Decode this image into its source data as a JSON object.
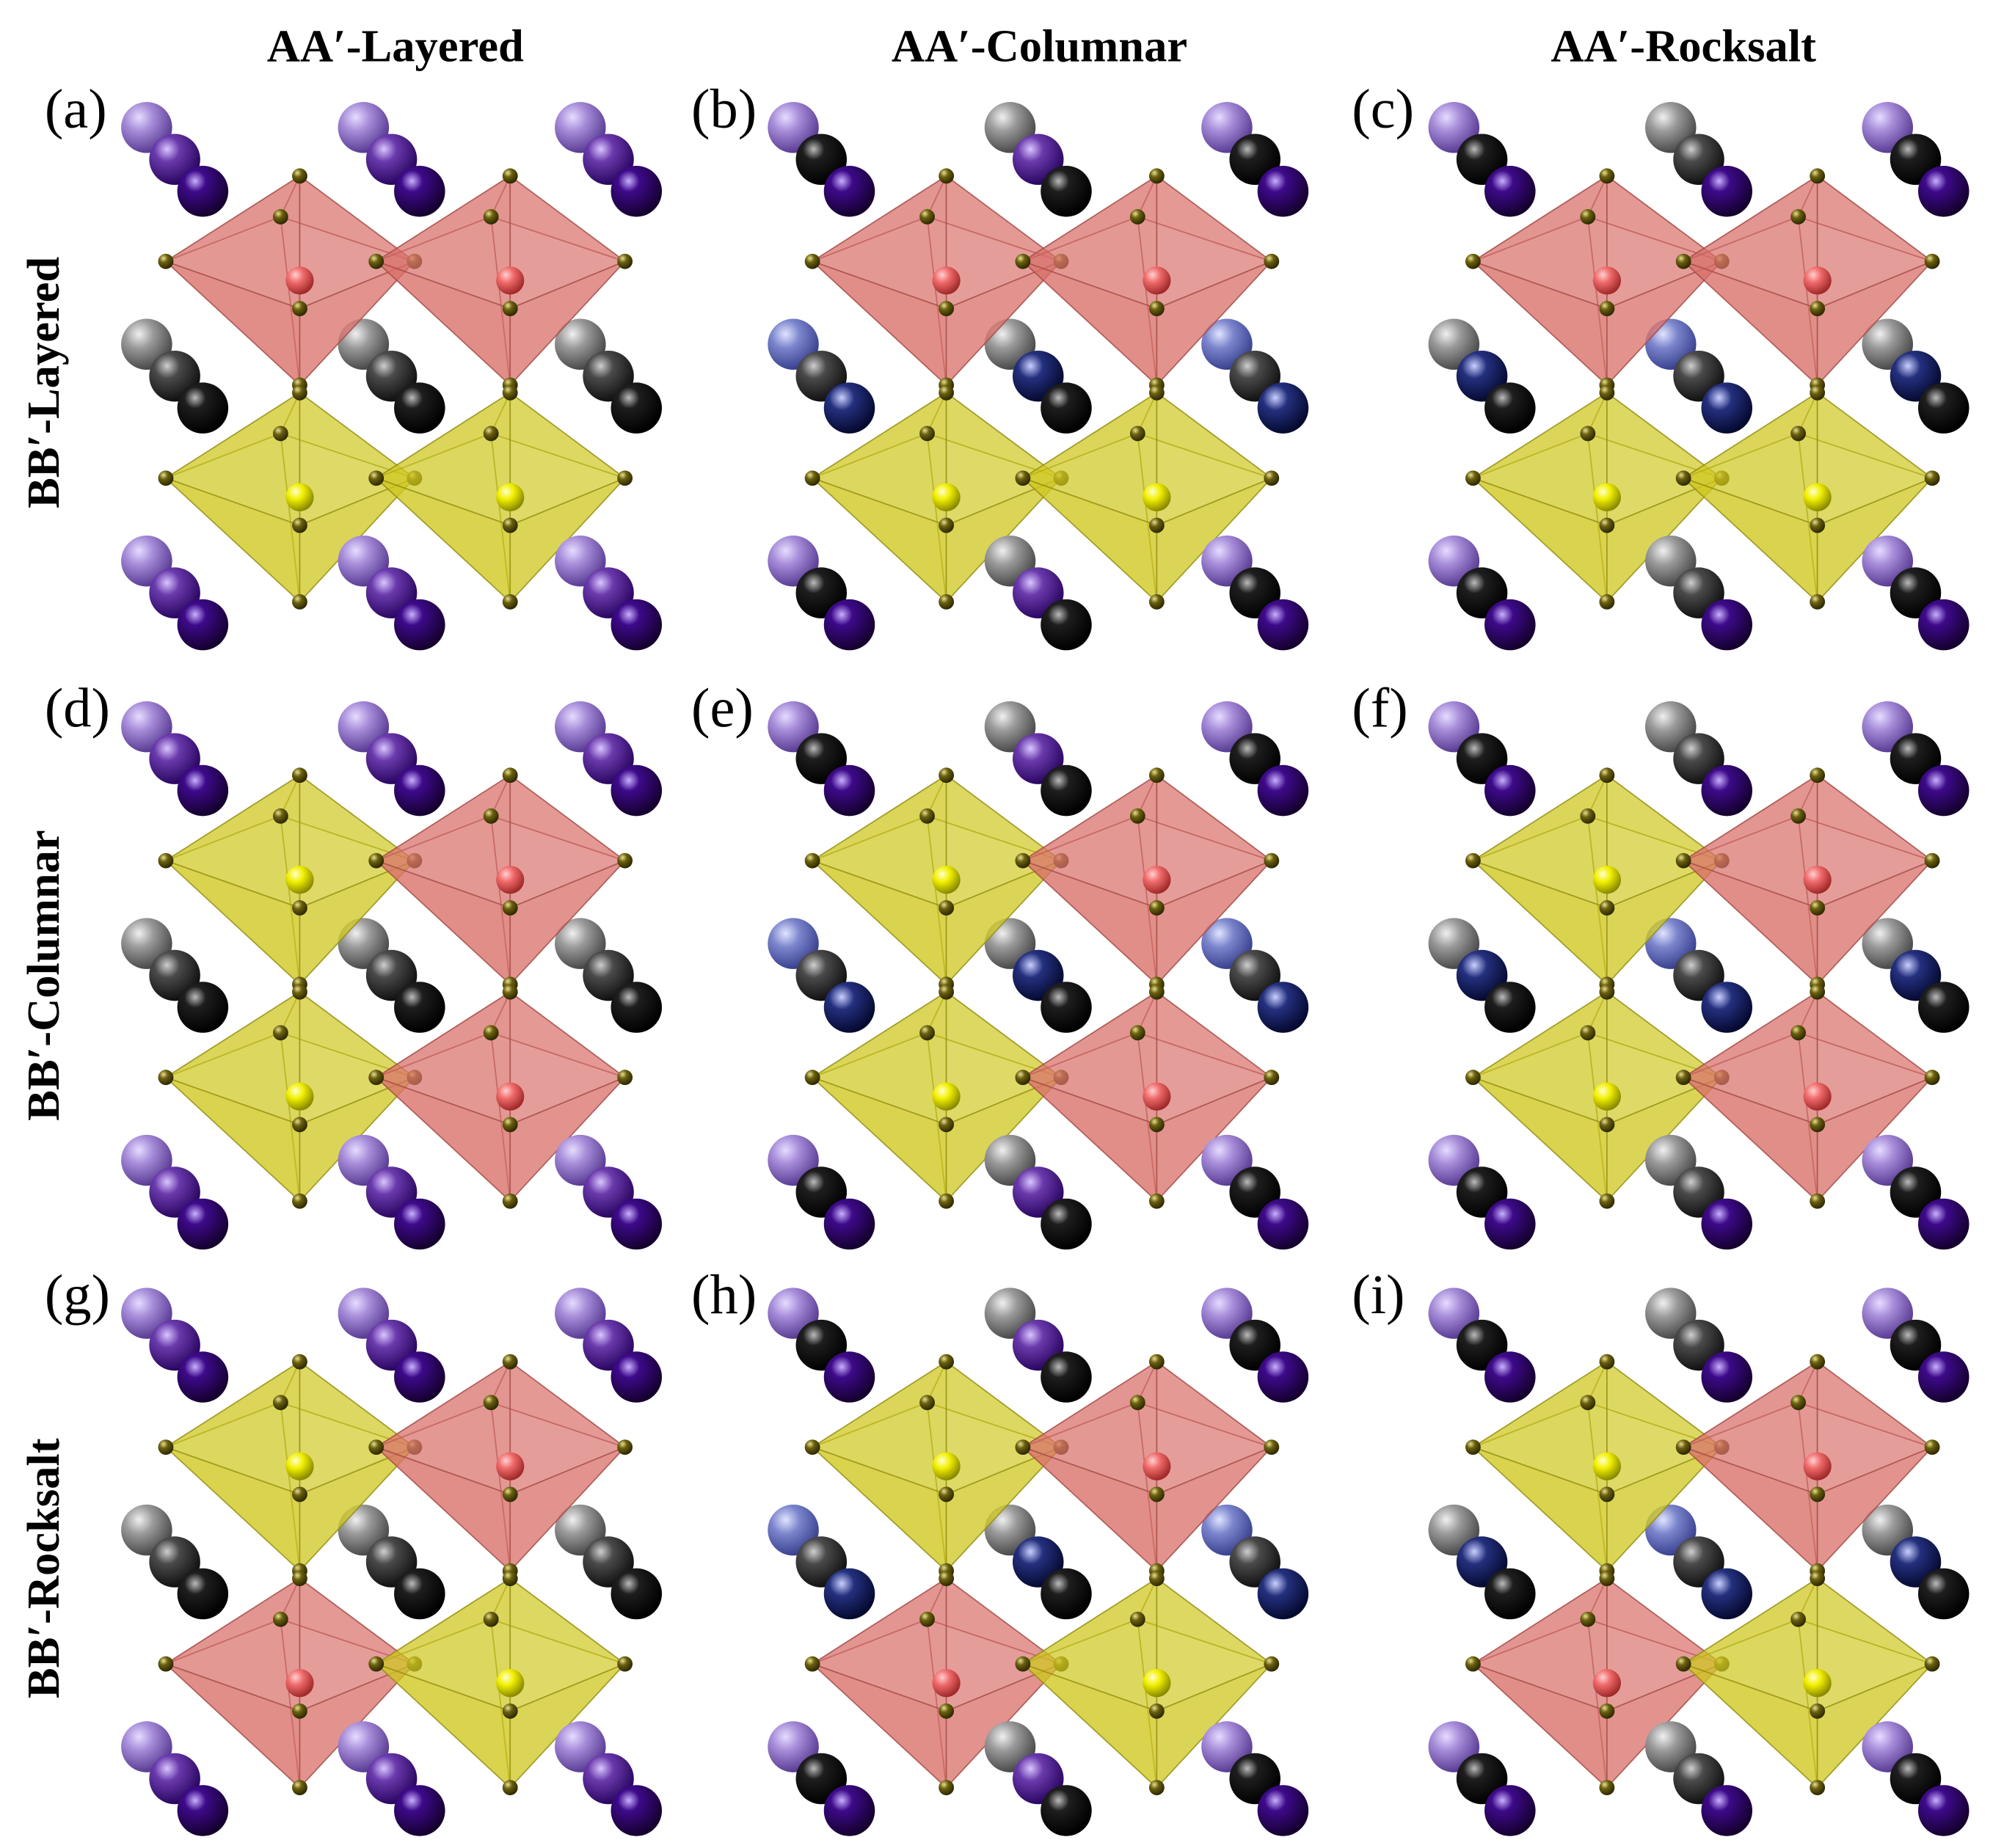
{
  "column_headers": [
    "AA′-Layered",
    "AA′-Columnar",
    "AA′-Rocksalt"
  ],
  "row_headers": [
    "BB′-Layered",
    "BB′-Columnar",
    "BB′-Rocksalt"
  ],
  "panel_labels": [
    "(a)",
    "(b)",
    "(c)",
    "(d)",
    "(e)",
    "(f)",
    "(g)",
    "(h)",
    "(i)"
  ]
}
